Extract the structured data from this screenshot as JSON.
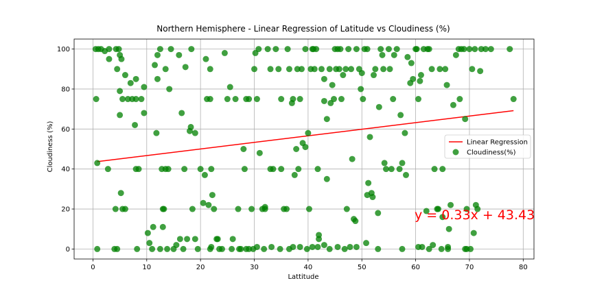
{
  "chart_data": {
    "type": "scatter",
    "title": "Northern Hemisphere - Linear Regression of Latitude vs Cloudiness (%)",
    "xlabel": "Lattitude",
    "ylabel": "Cloudiness (%)",
    "xlim": [
      -3.5,
      82
    ],
    "ylim": [
      -5,
      105
    ],
    "xticks": [
      0,
      10,
      20,
      30,
      40,
      50,
      60,
      70,
      80
    ],
    "yticks": [
      0,
      20,
      40,
      60,
      80,
      100
    ],
    "grid": true,
    "legend_position": "center-right",
    "equation": "y = 0.33x + 43.43",
    "colors": {
      "points": "#008000",
      "line": "#ff0000",
      "equation": "#ff0000"
    },
    "series": [
      {
        "name": "Linear Regression",
        "kind": "line",
        "x": [
          0.8,
          78.2
        ],
        "y": [
          43.7,
          69.2
        ]
      },
      {
        "name": "Cloudiness(%)",
        "kind": "scatter",
        "points": [
          [
            0.5,
            100
          ],
          [
            1,
            100
          ],
          [
            1.5,
            100
          ],
          [
            2.2,
            99
          ],
          [
            3,
            100
          ],
          [
            4.3,
            100
          ],
          [
            4.8,
            100
          ],
          [
            5,
            97
          ],
          [
            5.3,
            95
          ],
          [
            4.5,
            90
          ],
          [
            5,
            79
          ],
          [
            5.5,
            75
          ],
          [
            6,
            87
          ],
          [
            6.5,
            75
          ],
          [
            7.3,
            75
          ],
          [
            8,
            75
          ],
          [
            9,
            75
          ],
          [
            8,
            85
          ],
          [
            9.5,
            81
          ],
          [
            7,
            83
          ],
          [
            0.6,
            75
          ],
          [
            0.8,
            43
          ],
          [
            2.8,
            40
          ],
          [
            3,
            95
          ],
          [
            4.2,
            20
          ],
          [
            5.5,
            20
          ],
          [
            6,
            20
          ],
          [
            5.2,
            28
          ],
          [
            5,
            67
          ],
          [
            7.8,
            62
          ],
          [
            8,
            40
          ],
          [
            8.5,
            40
          ],
          [
            9.5,
            68
          ],
          [
            4,
            0
          ],
          [
            10.2,
            8
          ],
          [
            10.5,
            3
          ],
          [
            11,
            0
          ],
          [
            11.2,
            11
          ],
          [
            11.5,
            92
          ],
          [
            12,
            97
          ],
          [
            12,
            85
          ],
          [
            11.8,
            58
          ],
          [
            12.5,
            100
          ],
          [
            12.8,
            40
          ],
          [
            13,
            20
          ],
          [
            13.2,
            20
          ],
          [
            13.5,
            40
          ],
          [
            14,
            40
          ],
          [
            13,
            11
          ],
          [
            12.5,
            0
          ],
          [
            13.5,
            90
          ],
          [
            14.5,
            100
          ],
          [
            14.2,
            80
          ],
          [
            15,
            0
          ],
          [
            15.5,
            2
          ],
          [
            16,
            97
          ],
          [
            16.2,
            5
          ],
          [
            16.5,
            68
          ],
          [
            17,
            40
          ],
          [
            17.2,
            91
          ],
          [
            17.5,
            5
          ],
          [
            18,
            59
          ],
          [
            18.2,
            61
          ],
          [
            18.5,
            20
          ],
          [
            19,
            58
          ],
          [
            19,
            5
          ],
          [
            19.5,
            0
          ],
          [
            18.3,
            100
          ],
          [
            20,
            40
          ],
          [
            20.5,
            23
          ],
          [
            20.8,
            37
          ],
          [
            21,
            95
          ],
          [
            21.2,
            75
          ],
          [
            21.5,
            22
          ],
          [
            21.8,
            75
          ],
          [
            22,
            1
          ],
          [
            22.2,
            27
          ],
          [
            22.5,
            20
          ],
          [
            21.8,
            90
          ],
          [
            23,
            5
          ],
          [
            23.2,
            5
          ],
          [
            23.5,
            0
          ],
          [
            22,
            40
          ],
          [
            24.5,
            98
          ],
          [
            25,
            75
          ],
          [
            25.5,
            81
          ],
          [
            26,
            5
          ],
          [
            26.5,
            75
          ],
          [
            27,
            20
          ],
          [
            27.5,
            0
          ],
          [
            28,
            50
          ],
          [
            28.2,
            40
          ],
          [
            28.5,
            75
          ],
          [
            29,
            75
          ],
          [
            29.5,
            20
          ],
          [
            29,
            0
          ],
          [
            30,
            90
          ],
          [
            30.2,
            98
          ],
          [
            30.5,
            75
          ],
          [
            30.8,
            100
          ],
          [
            31,
            48
          ],
          [
            31.5,
            20
          ],
          [
            32,
            20
          ],
          [
            32,
            21
          ],
          [
            32.5,
            100
          ],
          [
            33,
            40
          ],
          [
            33.5,
            40
          ],
          [
            33,
            90
          ],
          [
            34,
            100
          ],
          [
            34.5,
            90
          ],
          [
            35,
            75
          ],
          [
            35,
            40
          ],
          [
            35.5,
            20
          ],
          [
            36,
            20
          ],
          [
            36.2,
            100
          ],
          [
            36.5,
            90
          ],
          [
            37,
            73
          ],
          [
            37.2,
            75
          ],
          [
            37.5,
            37
          ],
          [
            37.8,
            50
          ],
          [
            38,
            90
          ],
          [
            38.2,
            40
          ],
          [
            38.5,
            75
          ],
          [
            38.8,
            90
          ],
          [
            39,
            53
          ],
          [
            39.5,
            100
          ],
          [
            39.5,
            51
          ],
          [
            40,
            58
          ],
          [
            40.2,
            20
          ],
          [
            40.5,
            90
          ],
          [
            40.8,
            100
          ],
          [
            41,
            100
          ],
          [
            41.2,
            90
          ],
          [
            41.5,
            100
          ],
          [
            41.8,
            40
          ],
          [
            42,
            5
          ],
          [
            42,
            7
          ],
          [
            42.5,
            90
          ],
          [
            43,
            74
          ],
          [
            43,
            85
          ],
          [
            43.5,
            35
          ],
          [
            43.5,
            65
          ],
          [
            44,
            90
          ],
          [
            44.2,
            73
          ],
          [
            44.5,
            82
          ],
          [
            44.8,
            75
          ],
          [
            45,
            100
          ],
          [
            45.2,
            90
          ],
          [
            45.5,
            100
          ],
          [
            45.8,
            90
          ],
          [
            46,
            100
          ],
          [
            46.2,
            75
          ],
          [
            46.5,
            87
          ],
          [
            47,
            90
          ],
          [
            47.2,
            20
          ],
          [
            47.5,
            100
          ],
          [
            48,
            90
          ],
          [
            48.2,
            45
          ],
          [
            48.5,
            15
          ],
          [
            48.8,
            14
          ],
          [
            49,
            100
          ],
          [
            49.5,
            90
          ],
          [
            49.8,
            80
          ],
          [
            50,
            88
          ],
          [
            50.2,
            75
          ],
          [
            50.5,
            100
          ],
          [
            51,
            100
          ],
          [
            51,
            27
          ],
          [
            51.2,
            33
          ],
          [
            51.5,
            56
          ],
          [
            51.8,
            28
          ],
          [
            52,
            26
          ],
          [
            52.2,
            87
          ],
          [
            52.5,
            90
          ],
          [
            53,
            18
          ],
          [
            53.2,
            71
          ],
          [
            53.5,
            100
          ],
          [
            53.8,
            97
          ],
          [
            54,
            90
          ],
          [
            54.2,
            43
          ],
          [
            54.5,
            40
          ],
          [
            55,
            100
          ],
          [
            55.2,
            90
          ],
          [
            55.5,
            40
          ],
          [
            55.8,
            75
          ],
          [
            56,
            97
          ],
          [
            56.5,
            100
          ],
          [
            57,
            40
          ],
          [
            57.2,
            67
          ],
          [
            57.5,
            43
          ],
          [
            58,
            58
          ],
          [
            58.2,
            37
          ],
          [
            58.5,
            96
          ],
          [
            59,
            83
          ],
          [
            59.2,
            93
          ],
          [
            59.5,
            85
          ],
          [
            60,
            100
          ],
          [
            60.2,
            100
          ],
          [
            60.5,
            75
          ],
          [
            60.8,
            84
          ],
          [
            61,
            87
          ],
          [
            61.2,
            1
          ],
          [
            61.5,
            100
          ],
          [
            62,
            19
          ],
          [
            62.2,
            100
          ],
          [
            62.5,
            100
          ],
          [
            63,
            90
          ],
          [
            63.2,
            2
          ],
          [
            63.5,
            40
          ],
          [
            64,
            20
          ],
          [
            64.2,
            20
          ],
          [
            64.5,
            90
          ],
          [
            65,
            40
          ],
          [
            65,
            16
          ],
          [
            65.5,
            90
          ],
          [
            65.8,
            82
          ],
          [
            66,
            0
          ],
          [
            66.2,
            10
          ],
          [
            66.5,
            22
          ],
          [
            67,
            72
          ],
          [
            67.5,
            97
          ],
          [
            68,
            100
          ],
          [
            68.2,
            75
          ],
          [
            68.5,
            100
          ],
          [
            69,
            100
          ],
          [
            69.2,
            65
          ],
          [
            69.5,
            20
          ],
          [
            69.5,
            0
          ],
          [
            70,
            100
          ],
          [
            70.2,
            0
          ],
          [
            70.5,
            90
          ],
          [
            70.8,
            8
          ],
          [
            71,
            100
          ],
          [
            71.2,
            22
          ],
          [
            71.5,
            20
          ],
          [
            72,
            89
          ],
          [
            72.2,
            100
          ],
          [
            73,
            100
          ],
          [
            74,
            100
          ],
          [
            77.5,
            100
          ],
          [
            78.2,
            75
          ],
          [
            0.8,
            0
          ],
          [
            4.5,
            0
          ],
          [
            8.2,
            0
          ],
          [
            13.8,
            0
          ],
          [
            16.8,
            0
          ],
          [
            21.8,
            0
          ],
          [
            24,
            0
          ],
          [
            25.8,
            0
          ],
          [
            27.2,
            0
          ],
          [
            28.5,
            0
          ],
          [
            29.8,
            0
          ],
          [
            30.5,
            1
          ],
          [
            31.8,
            0
          ],
          [
            33.2,
            1
          ],
          [
            34.8,
            0
          ],
          [
            36.5,
            0
          ],
          [
            37.2,
            1
          ],
          [
            38.5,
            1
          ],
          [
            39.8,
            0
          ],
          [
            40.8,
            1
          ],
          [
            41.8,
            1
          ],
          [
            43,
            2
          ],
          [
            44,
            0
          ],
          [
            45.5,
            1
          ],
          [
            46.8,
            0
          ],
          [
            47.8,
            1
          ],
          [
            49,
            1
          ],
          [
            50.8,
            3
          ],
          [
            53,
            0
          ],
          [
            57.5,
            0
          ],
          [
            60.5,
            1
          ],
          [
            62.5,
            0
          ],
          [
            64.8,
            0
          ],
          [
            66,
            1
          ],
          [
            69.2,
            0
          ]
        ]
      }
    ]
  }
}
